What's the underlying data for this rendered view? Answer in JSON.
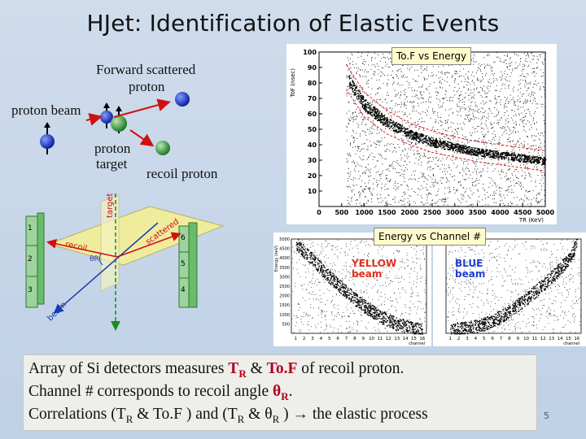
{
  "title": "HJet: Identification of Elastic Events",
  "diagram": {
    "forward_scattered": "Forward scattered",
    "proton": "proton",
    "proton_beam": "proton beam",
    "proton_target_1": "proton",
    "proton_target_2": "target",
    "recoil_proton": "recoil proton",
    "geometry_labels": {
      "target": "target",
      "scattered": "scattered",
      "recoil": "recoil",
      "beam": "beam",
      "theta": "θR",
      "detector_numbers": [
        "1",
        "2",
        "3",
        "6",
        "5",
        "4"
      ]
    }
  },
  "panels": {
    "tof_tag": "To.F vs Energy",
    "energy_tag": "Energy vs Channel #",
    "yellow_1": "YELLOW",
    "yellow_2": "beam",
    "blue_1": "BLUE",
    "blue_2": "beam",
    "colors": {
      "yellow": "#e0301e",
      "blue": "#1f3fd0"
    }
  },
  "chart_data": [
    {
      "type": "scatter",
      "title": "",
      "xlabel": "TR (KeV)",
      "ylabel": "ToF (nsec)",
      "xlim": [
        0,
        5000
      ],
      "ylim": [
        0,
        100
      ],
      "x_ticks": [
        0,
        500,
        1000,
        1500,
        2000,
        2500,
        3000,
        3500,
        4000,
        4500,
        5000
      ],
      "y_ticks": [
        10,
        20,
        30,
        40,
        50,
        60,
        70,
        80,
        90,
        100
      ],
      "bands": [
        {
          "name": "elastic-upper",
          "x": [
            600,
            1000,
            1500,
            2000,
            2500,
            3000,
            3500,
            4000,
            4500,
            5000
          ],
          "y": [
            88,
            70,
            58,
            50,
            45,
            41,
            38,
            36,
            34,
            32
          ]
        },
        {
          "name": "elastic-lower",
          "x": [
            600,
            1000,
            1500,
            2000,
            2500,
            3000,
            3500,
            4000,
            4500,
            5000
          ],
          "y": [
            80,
            62,
            51,
            44,
            39,
            36,
            33,
            31,
            29,
            27
          ]
        }
      ]
    },
    {
      "type": "scatter",
      "title": "",
      "xlabel": "channel",
      "ylabel": "Energy (keV)",
      "ylim": [
        0,
        5000
      ],
      "y_ticks": [
        500,
        1000,
        1500,
        2000,
        2500,
        3000,
        3500,
        4000,
        4500,
        5000
      ],
      "x_ticks": [
        1,
        2,
        3,
        4,
        5,
        6,
        7,
        8,
        9,
        10,
        11,
        12,
        13,
        14,
        15,
        16
      ],
      "series": [
        {
          "name": "YELLOW beam",
          "x": [
            1,
            3,
            5,
            7,
            9,
            11,
            13,
            15,
            16
          ],
          "y": [
            4800,
            3900,
            3000,
            2200,
            1500,
            900,
            500,
            300,
            200
          ]
        },
        {
          "name": "BLUE beam",
          "x": [
            1,
            3,
            5,
            7,
            9,
            11,
            13,
            15,
            16
          ],
          "y": [
            200,
            300,
            500,
            900,
            1500,
            2200,
            3000,
            3900,
            4800
          ]
        }
      ]
    }
  ],
  "caption": {
    "l1_a": "Array of Si detectors measures ",
    "l1_b": "T",
    "l1_bsub": "R",
    "l1_c": " & ",
    "l1_d": "To.F",
    "l1_e": " of recoil proton.",
    "l2_a": "Channel # corresponds to recoil angle ",
    "l2_b": "θ",
    "l2_bsub": "R",
    "l2_c": ".",
    "l3_a": "Correlations (T",
    "l3_asub": "R",
    "l3_b": " & To.F ) and (T",
    "l3_bsub": "R",
    "l3_c": " & θ",
    "l3_csub": "R",
    "l3_d": " ) ",
    "l3_arrow1": "→",
    "l3_e": " the elastic process"
  },
  "page_number": "5"
}
